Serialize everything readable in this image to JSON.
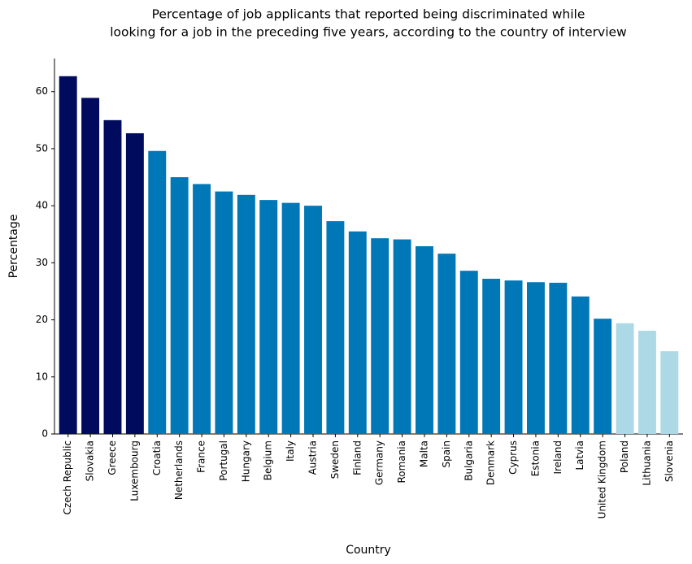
{
  "chart_data": {
    "type": "bar",
    "title": [
      "Percentage of job applicants that reported being discriminated while",
      "looking for a job in the preceding five years, according to the country of interview"
    ],
    "x_label": "Country",
    "y_label": "Percentage",
    "categories": [
      "Czech Republic",
      "Slovakia",
      "Greece",
      "Luxembourg",
      "Croatia",
      "Netherlands",
      "France",
      "Portugal",
      "Hungary",
      "Belgium",
      "Italy",
      "Austria",
      "Sweden",
      "Finland",
      "Germany",
      "Romania",
      "Malta",
      "Spain",
      "Bulgaria",
      "Denmark",
      "Cyprus",
      "Estonia",
      "Ireland",
      "Latvia",
      "United Kingdom",
      "Poland",
      "Lithuania",
      "Slovenia"
    ],
    "values": [
      62.7,
      58.9,
      55.0,
      52.7,
      49.6,
      45.0,
      43.8,
      42.5,
      41.9,
      41.0,
      40.5,
      40.0,
      37.3,
      35.5,
      34.3,
      34.1,
      32.9,
      31.6,
      28.6,
      27.2,
      26.9,
      26.6,
      26.5,
      24.1,
      20.2,
      19.4,
      18.1,
      14.5
    ],
    "colors": [
      "#000b5e",
      "#000b5e",
      "#000b5e",
      "#000b5e",
      "#0077b6",
      "#0077b6",
      "#0077b6",
      "#0077b6",
      "#0077b6",
      "#0077b6",
      "#0077b6",
      "#0077b6",
      "#0077b6",
      "#0077b6",
      "#0077b6",
      "#0077b6",
      "#0077b6",
      "#0077b6",
      "#0077b6",
      "#0077b6",
      "#0077b6",
      "#0077b6",
      "#0077b6",
      "#0077b6",
      "#0077b6",
      "#add8e6",
      "#add8e6",
      "#add8e6"
    ],
    "ylim": [
      0,
      65.8
    ],
    "yticks": [
      0,
      10,
      20,
      30,
      40,
      50,
      60
    ],
    "grid": false
  }
}
